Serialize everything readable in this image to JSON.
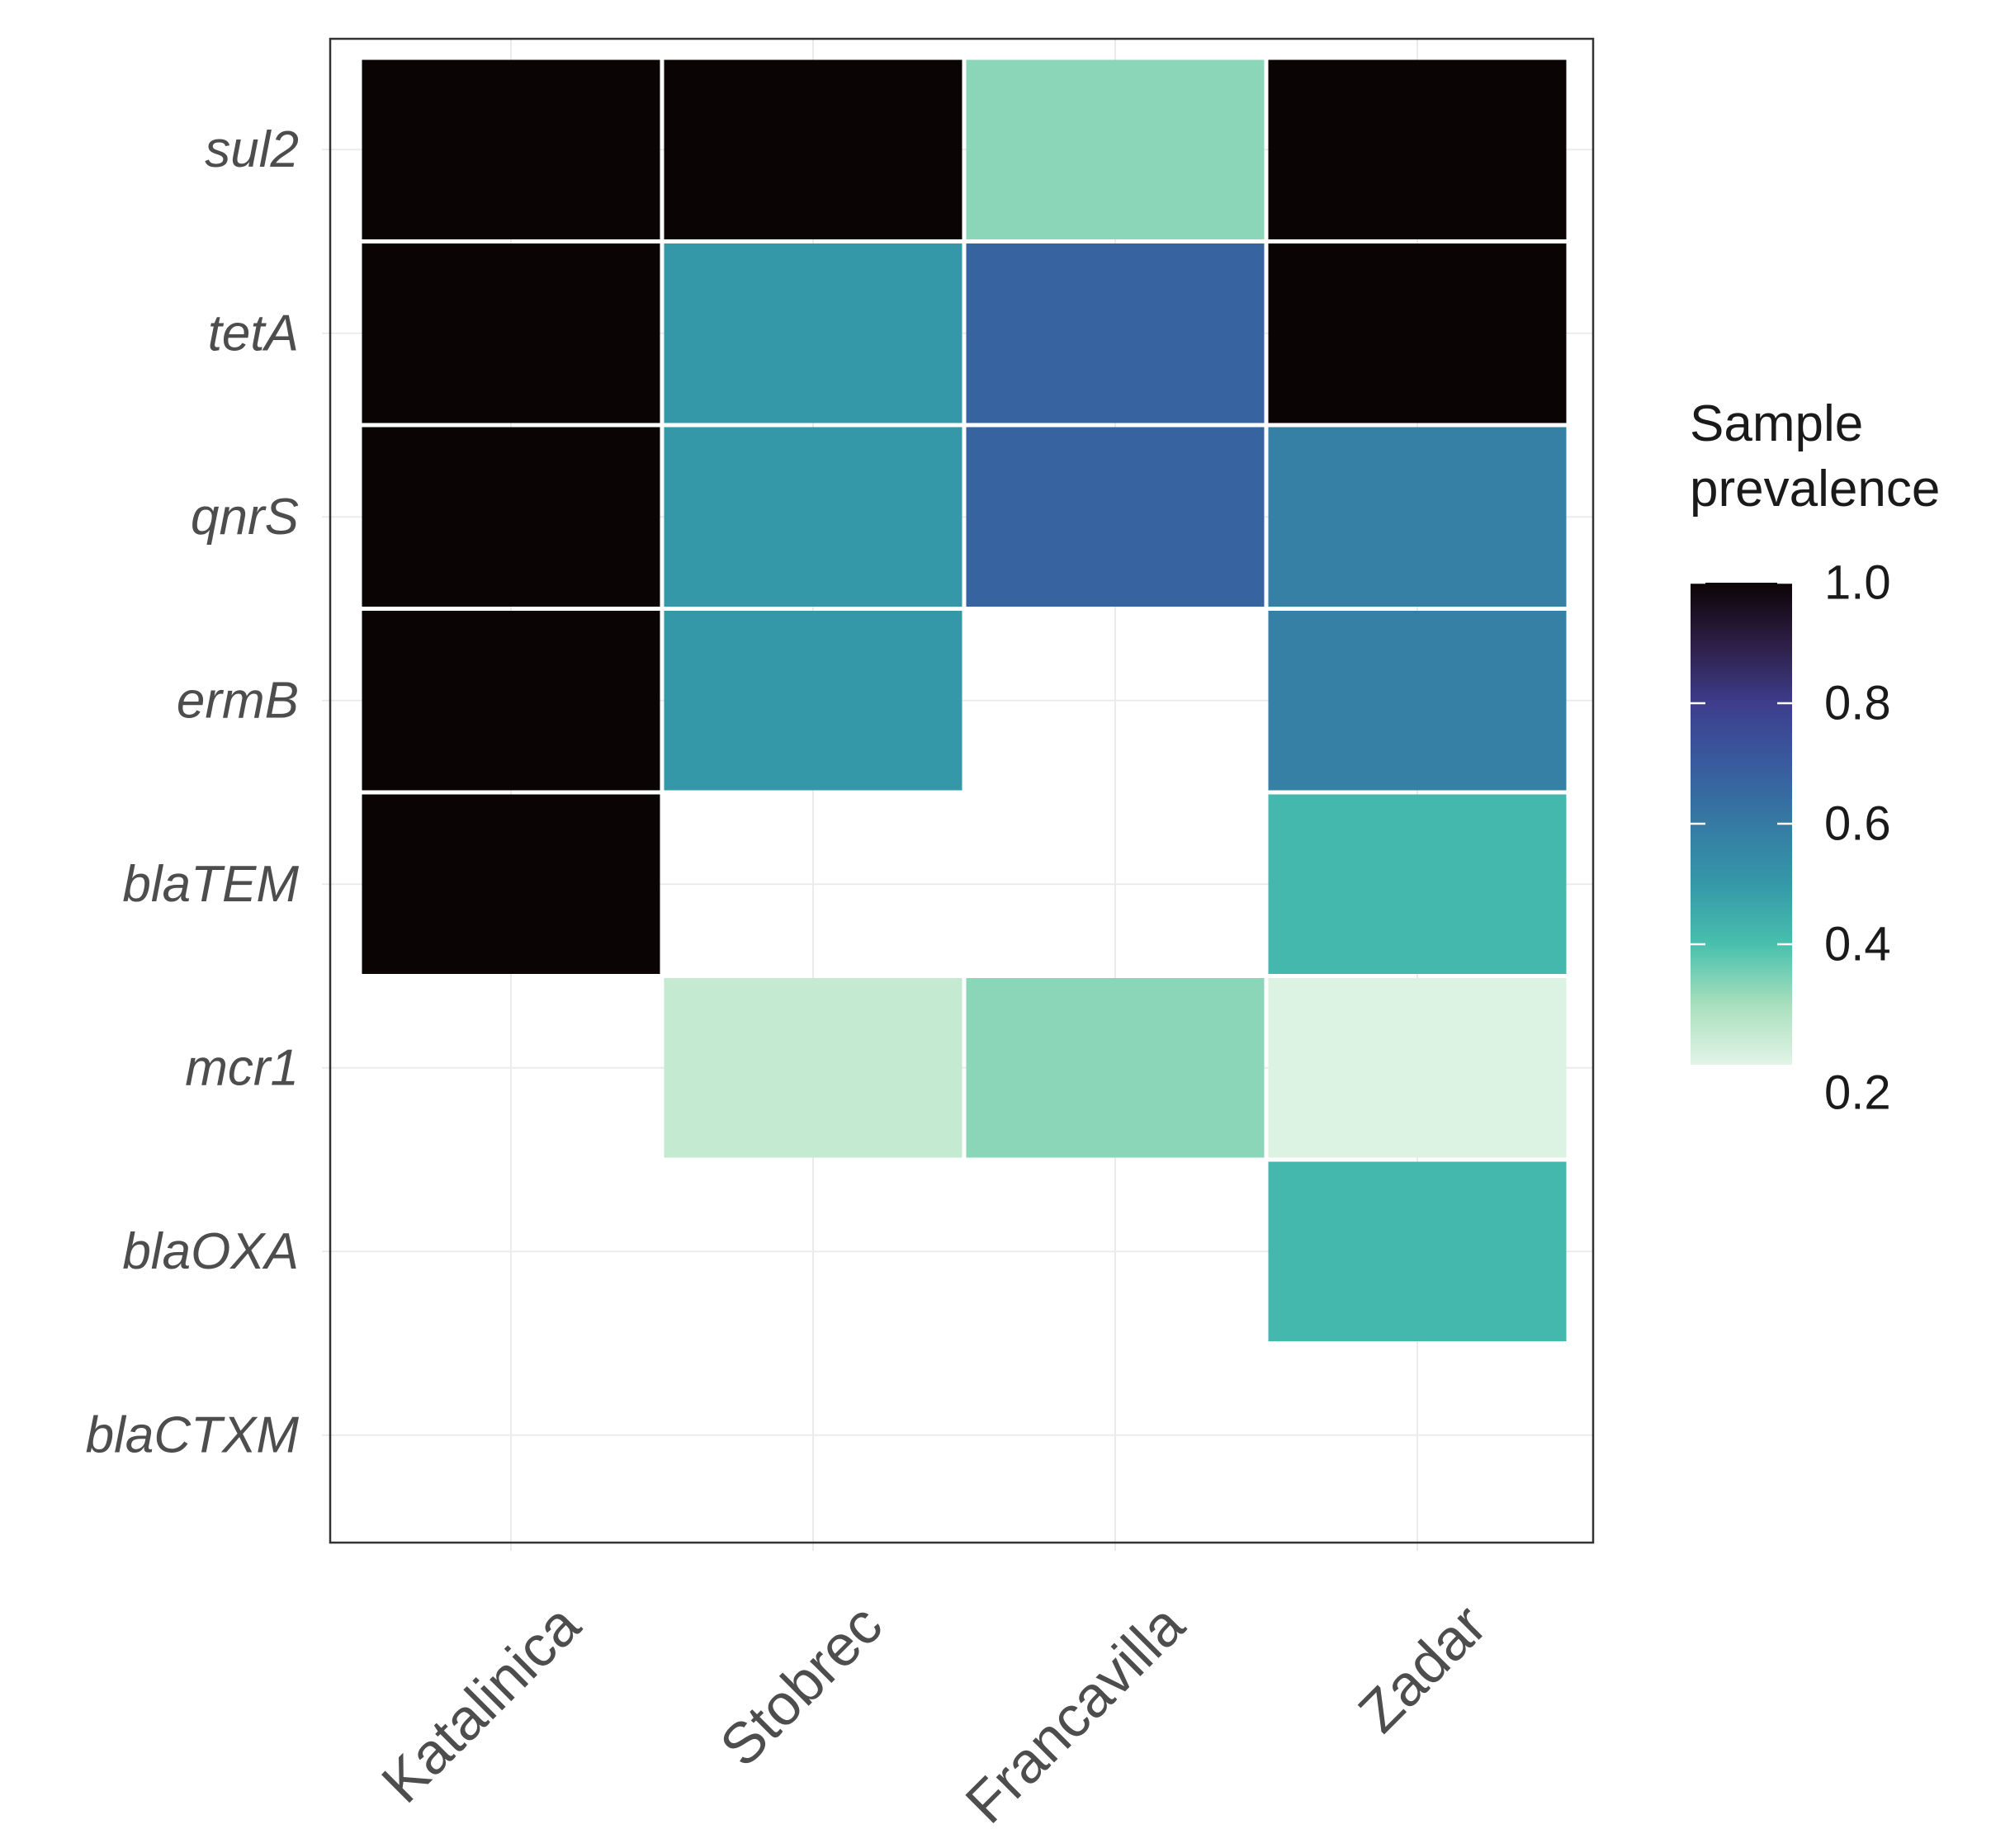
{
  "chart_data": {
    "type": "heatmap",
    "title": "",
    "xlabel": "",
    "ylabel": "",
    "x_categories": [
      "Katalinica",
      "Stobrec",
      "Francavilla",
      "Zadar"
    ],
    "y_categories": [
      "sul2",
      "tetA",
      "qnrS",
      "ermB",
      "blaTEM",
      "mcr1",
      "blaOXA",
      "blaCTXM"
    ],
    "values": [
      [
        1.0,
        1.0,
        0.33,
        1.0
      ],
      [
        1.0,
        0.5,
        0.67,
        1.0
      ],
      [
        1.0,
        0.5,
        0.67,
        0.58
      ],
      [
        1.0,
        0.5,
        null,
        0.58
      ],
      [
        1.0,
        null,
        null,
        0.42
      ],
      [
        null,
        0.25,
        0.33,
        0.21
      ],
      [
        null,
        null,
        null,
        0.42
      ],
      [
        null,
        null,
        null,
        null
      ]
    ],
    "legend": {
      "title_lines": [
        "Sample",
        "prevalence"
      ],
      "ticks": [
        1.0,
        0.8,
        0.6,
        0.4,
        0.2
      ],
      "tick_labels": [
        "1.0",
        "0.8",
        "0.6",
        "0.4",
        "0.2"
      ],
      "range": [
        0.2,
        1.0
      ],
      "placement": "right"
    },
    "colorscale": [
      {
        "value": 0.2,
        "color": "#e2f4e6"
      },
      {
        "value": 0.3,
        "color": "#a8dfbd"
      },
      {
        "value": 0.4,
        "color": "#48c0ad"
      },
      {
        "value": 0.5,
        "color": "#3598a8"
      },
      {
        "value": 0.6,
        "color": "#357aa3"
      },
      {
        "value": 0.7,
        "color": "#385b9e"
      },
      {
        "value": 0.8,
        "color": "#3e3d8c"
      },
      {
        "value": 0.9,
        "color": "#2c1e45"
      },
      {
        "value": 1.0,
        "color": "#0b0405"
      }
    ],
    "colors": {
      "panel_border": "#333333",
      "grid": "#ebebeb",
      "tile_border": "#ffffff",
      "tick_label": "#4d4d4d",
      "legend_text": "#1a1a1a"
    }
  }
}
